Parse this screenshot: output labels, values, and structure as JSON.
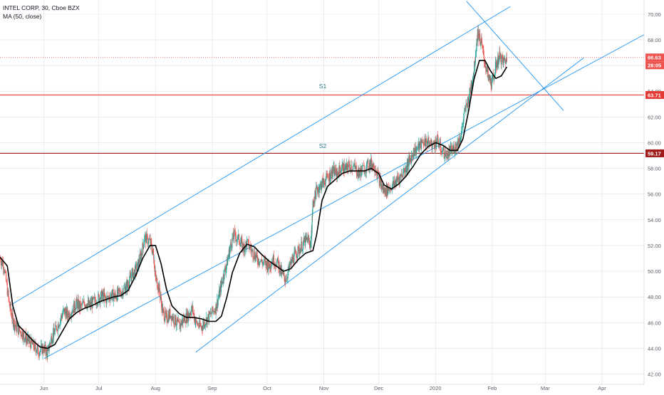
{
  "chart_data": {
    "type": "candlestick",
    "title": "INTEL CORP, 30, Cboe BZX",
    "indicator": "MA (50, close)",
    "x_tick_labels": [
      "Jun",
      "Jul",
      "Aug",
      "Sep",
      "Oct",
      "Nov",
      "Dec",
      "2020",
      "Feb",
      "Mar",
      "Apr"
    ],
    "x_tick_dates": [
      "2019-06-01",
      "2019-07-01",
      "2019-08-01",
      "2019-09-01",
      "2019-10-01",
      "2019-11-01",
      "2019-12-01",
      "2020-01-01",
      "2020-02-01",
      "2020-03-01",
      "2020-04-01"
    ],
    "y_ticks": [
      42.0,
      44.0,
      46.0,
      48.0,
      50.0,
      52.0,
      54.0,
      56.0,
      58.0,
      60.0,
      62.0,
      64.0,
      66.0,
      68.0,
      70.0
    ],
    "y_tick_labels": [
      "42.00",
      "44.00",
      "46.00",
      "48.00",
      "50.00",
      "52.00",
      "54.00",
      "56.00",
      "58.00",
      "60.00",
      "62.00",
      "64.00",
      "66.00",
      "68.00",
      "70.00"
    ],
    "ylim": [
      41.2,
      71.1
    ],
    "xlim": [
      "2019-05-08",
      "2020-04-24"
    ],
    "grid": true,
    "price_axis": "right",
    "price_series_points": [
      [
        "2019-05-08",
        51.0
      ],
      [
        "2019-05-10",
        50.5
      ],
      [
        "2019-05-13",
        47.5
      ],
      [
        "2019-05-15",
        46.2
      ],
      [
        "2019-05-17",
        45.6
      ],
      [
        "2019-05-20",
        45.2
      ],
      [
        "2019-05-22",
        44.8
      ],
      [
        "2019-05-24",
        44.5
      ],
      [
        "2019-05-27",
        44.1
      ],
      [
        "2019-05-29",
        43.8
      ],
      [
        "2019-06-01",
        44.0
      ],
      [
        "2019-06-03",
        43.6
      ],
      [
        "2019-06-05",
        44.8
      ],
      [
        "2019-06-07",
        45.3
      ],
      [
        "2019-06-10",
        46.3
      ],
      [
        "2019-06-12",
        46.9
      ],
      [
        "2019-06-14",
        46.6
      ],
      [
        "2019-06-17",
        47.1
      ],
      [
        "2019-06-19",
        47.5
      ],
      [
        "2019-06-21",
        47.2
      ],
      [
        "2019-06-24",
        47.6
      ],
      [
        "2019-06-26",
        47.3
      ],
      [
        "2019-06-28",
        47.6
      ],
      [
        "2019-07-01",
        47.9
      ],
      [
        "2019-07-03",
        48.1
      ],
      [
        "2019-07-05",
        47.8
      ],
      [
        "2019-07-08",
        48.2
      ],
      [
        "2019-07-10",
        48.0
      ],
      [
        "2019-07-12",
        48.3
      ],
      [
        "2019-07-15",
        48.6
      ],
      [
        "2019-07-17",
        49.0
      ],
      [
        "2019-07-19",
        49.7
      ],
      [
        "2019-07-22",
        50.3
      ],
      [
        "2019-07-24",
        51.2
      ],
      [
        "2019-07-26",
        52.6
      ],
      [
        "2019-07-29",
        52.3
      ],
      [
        "2019-07-31",
        51.2
      ],
      [
        "2019-08-01",
        49.5
      ],
      [
        "2019-08-03",
        48.6
      ],
      [
        "2019-08-05",
        46.8
      ],
      [
        "2019-08-07",
        46.3
      ],
      [
        "2019-08-09",
        46.7
      ],
      [
        "2019-08-12",
        46.1
      ],
      [
        "2019-08-14",
        45.7
      ],
      [
        "2019-08-16",
        46.2
      ],
      [
        "2019-08-19",
        46.6
      ],
      [
        "2019-08-21",
        47.1
      ],
      [
        "2019-08-23",
        46.0
      ],
      [
        "2019-08-26",
        45.6
      ],
      [
        "2019-08-28",
        46.1
      ],
      [
        "2019-08-31",
        46.6
      ],
      [
        "2019-09-03",
        47.2
      ],
      [
        "2019-09-05",
        48.3
      ],
      [
        "2019-09-07",
        49.6
      ],
      [
        "2019-09-09",
        50.6
      ],
      [
        "2019-09-11",
        52.0
      ],
      [
        "2019-09-13",
        52.8
      ],
      [
        "2019-09-16",
        52.4
      ],
      [
        "2019-09-18",
        51.8
      ],
      [
        "2019-09-20",
        52.2
      ],
      [
        "2019-09-23",
        51.5
      ],
      [
        "2019-09-25",
        51.1
      ],
      [
        "2019-09-27",
        50.8
      ],
      [
        "2019-09-30",
        50.6
      ],
      [
        "2019-10-02",
        50.4
      ],
      [
        "2019-10-04",
        50.9
      ],
      [
        "2019-10-07",
        50.6
      ],
      [
        "2019-10-09",
        49.8
      ],
      [
        "2019-10-11",
        49.4
      ],
      [
        "2019-10-14",
        50.6
      ],
      [
        "2019-10-16",
        51.2
      ],
      [
        "2019-10-18",
        51.6
      ],
      [
        "2019-10-21",
        52.2
      ],
      [
        "2019-10-23",
        52.5
      ],
      [
        "2019-10-25",
        52.1
      ],
      [
        "2019-10-26",
        55.2
      ],
      [
        "2019-10-28",
        56.3
      ],
      [
        "2019-10-30",
        56.6
      ],
      [
        "2019-11-01",
        57.0
      ],
      [
        "2019-11-04",
        57.4
      ],
      [
        "2019-11-06",
        57.8
      ],
      [
        "2019-11-08",
        57.6
      ],
      [
        "2019-11-11",
        58.1
      ],
      [
        "2019-11-13",
        57.9
      ],
      [
        "2019-11-15",
        58.3
      ],
      [
        "2019-11-18",
        58.0
      ],
      [
        "2019-11-20",
        57.6
      ],
      [
        "2019-11-22",
        57.9
      ],
      [
        "2019-11-25",
        58.2
      ],
      [
        "2019-11-27",
        58.4
      ],
      [
        "2019-11-29",
        58.1
      ],
      [
        "2019-12-02",
        56.8
      ],
      [
        "2019-12-04",
        56.2
      ],
      [
        "2019-12-06",
        56.4
      ],
      [
        "2019-12-09",
        56.7
      ],
      [
        "2019-12-11",
        57.1
      ],
      [
        "2019-12-13",
        57.4
      ],
      [
        "2019-12-16",
        58.1
      ],
      [
        "2019-12-18",
        58.6
      ],
      [
        "2019-12-20",
        59.3
      ],
      [
        "2019-12-23",
        59.7
      ],
      [
        "2019-12-26",
        60.1
      ],
      [
        "2019-12-28",
        60.0
      ],
      [
        "2019-12-31",
        59.8
      ],
      [
        "2020-01-02",
        60.2
      ],
      [
        "2020-01-04",
        59.5
      ],
      [
        "2020-01-07",
        59.0
      ],
      [
        "2020-01-09",
        59.3
      ],
      [
        "2020-01-11",
        59.5
      ],
      [
        "2020-01-13",
        59.9
      ],
      [
        "2020-01-15",
        60.6
      ],
      [
        "2020-01-17",
        62.4
      ],
      [
        "2020-01-20",
        64.0
      ],
      [
        "2020-01-22",
        65.6
      ],
      [
        "2020-01-24",
        68.6
      ],
      [
        "2020-01-26",
        67.8
      ],
      [
        "2020-01-28",
        66.2
      ],
      [
        "2020-01-30",
        65.0
      ],
      [
        "2020-02-01",
        64.6
      ],
      [
        "2020-02-03",
        66.0
      ],
      [
        "2020-02-05",
        66.7
      ],
      [
        "2020-02-07",
        66.3
      ],
      [
        "2020-02-09",
        66.5
      ]
    ],
    "ma50_points": [
      [
        "2019-05-08",
        51.1
      ],
      [
        "2019-05-12",
        50.4
      ],
      [
        "2019-05-15",
        47.3
      ],
      [
        "2019-05-18",
        45.8
      ],
      [
        "2019-05-22",
        45.2
      ],
      [
        "2019-05-26",
        44.6
      ],
      [
        "2019-05-30",
        44.1
      ],
      [
        "2019-06-03",
        44.0
      ],
      [
        "2019-06-07",
        44.3
      ],
      [
        "2019-06-11",
        45.3
      ],
      [
        "2019-06-15",
        46.3
      ],
      [
        "2019-06-19",
        46.8
      ],
      [
        "2019-06-23",
        47.1
      ],
      [
        "2019-06-27",
        47.3
      ],
      [
        "2019-07-01",
        47.6
      ],
      [
        "2019-07-05",
        47.8
      ],
      [
        "2019-07-09",
        48.0
      ],
      [
        "2019-07-13",
        48.1
      ],
      [
        "2019-07-17",
        48.5
      ],
      [
        "2019-07-21",
        49.6
      ],
      [
        "2019-07-25",
        51.0
      ],
      [
        "2019-07-29",
        52.0
      ],
      [
        "2019-08-01",
        52.0
      ],
      [
        "2019-08-04",
        50.6
      ],
      [
        "2019-08-07",
        48.6
      ],
      [
        "2019-08-10",
        47.3
      ],
      [
        "2019-08-14",
        46.7
      ],
      [
        "2019-08-18",
        46.4
      ],
      [
        "2019-08-22",
        46.4
      ],
      [
        "2019-08-26",
        46.3
      ],
      [
        "2019-08-30",
        46.1
      ],
      [
        "2019-09-03",
        46.1
      ],
      [
        "2019-09-06",
        46.5
      ],
      [
        "2019-09-09",
        48.0
      ],
      [
        "2019-09-12",
        49.9
      ],
      [
        "2019-09-16",
        51.4
      ],
      [
        "2019-09-20",
        52.1
      ],
      [
        "2019-09-24",
        51.9
      ],
      [
        "2019-09-28",
        51.3
      ],
      [
        "2019-10-02",
        50.8
      ],
      [
        "2019-10-06",
        50.4
      ],
      [
        "2019-10-10",
        50.0
      ],
      [
        "2019-10-14",
        50.2
      ],
      [
        "2019-10-18",
        50.9
      ],
      [
        "2019-10-22",
        51.4
      ],
      [
        "2019-10-26",
        51.6
      ],
      [
        "2019-10-28",
        52.8
      ],
      [
        "2019-10-31",
        55.5
      ],
      [
        "2019-11-03",
        56.6
      ],
      [
        "2019-11-07",
        57.1
      ],
      [
        "2019-11-11",
        57.6
      ],
      [
        "2019-11-15",
        57.8
      ],
      [
        "2019-11-19",
        57.8
      ],
      [
        "2019-11-23",
        57.8
      ],
      [
        "2019-11-27",
        58.0
      ],
      [
        "2019-12-01",
        57.6
      ],
      [
        "2019-12-04",
        56.7
      ],
      [
        "2019-12-08",
        56.4
      ],
      [
        "2019-12-12",
        56.8
      ],
      [
        "2019-12-16",
        57.4
      ],
      [
        "2019-12-20",
        58.2
      ],
      [
        "2019-12-24",
        59.1
      ],
      [
        "2019-12-28",
        59.7
      ],
      [
        "2020-01-01",
        60.0
      ],
      [
        "2020-01-05",
        59.8
      ],
      [
        "2020-01-09",
        59.4
      ],
      [
        "2020-01-13",
        59.4
      ],
      [
        "2020-01-16",
        60.3
      ],
      [
        "2020-01-19",
        62.4
      ],
      [
        "2020-01-22",
        64.9
      ],
      [
        "2020-01-25",
        66.4
      ],
      [
        "2020-01-28",
        66.4
      ],
      [
        "2020-01-31",
        65.6
      ],
      [
        "2020-02-03",
        65.0
      ],
      [
        "2020-02-06",
        65.2
      ],
      [
        "2020-02-09",
        65.9
      ]
    ],
    "horizontal_levels": [
      {
        "label": "S1",
        "value": 63.71,
        "value_label": "63.71",
        "color": "#e53935"
      },
      {
        "label": "S2",
        "value": 59.17,
        "value_label": "59.17",
        "color": "#a11b1b"
      }
    ],
    "last_price": {
      "value": 66.63,
      "value_label": "66.63",
      "countdown": "28:05",
      "color": "#ef5350"
    },
    "channel_lines": [
      {
        "name": "upper",
        "from": [
          "2019-05-13",
          47.3
        ],
        "to": [
          "2020-02-11",
          70.6
        ]
      },
      {
        "name": "middle",
        "from": [
          "2019-06-01",
          43.2
        ],
        "to": [
          "2020-04-24",
          68.4
        ]
      },
      {
        "name": "lower",
        "from": [
          "2019-08-23",
          43.7
        ],
        "to": [
          "2020-03-22",
          66.6
        ]
      },
      {
        "name": "downtrend",
        "from": [
          "2020-01-18",
          71.0
        ],
        "to": [
          "2020-03-11",
          62.5
        ]
      }
    ],
    "colors": {
      "up": "#26a69a",
      "down": "#ef5350",
      "ma": "#000000",
      "channel": "#2196f3",
      "grid": "#e1e3eb"
    }
  }
}
